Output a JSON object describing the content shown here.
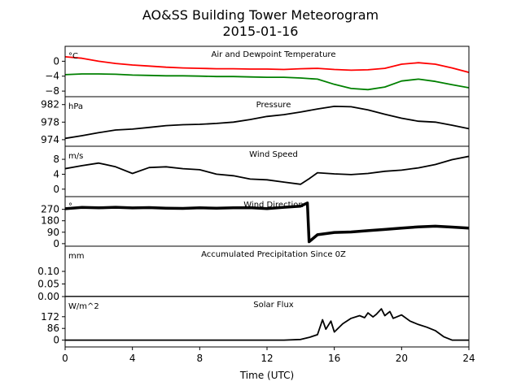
{
  "title": "AO&SS Building Tower Meteorogram",
  "subtitle": "2015-01-16",
  "xlabel": "Time (UTC)",
  "chart_data": {
    "type": "line",
    "title": "AO&SS Building Tower Meteorogram",
    "subtitle": "2015-01-16",
    "xlabel": "Time (UTC)",
    "xlim": [
      0,
      24
    ],
    "xticks": [
      "0",
      "4",
      "8",
      "12",
      "16",
      "20",
      "24"
    ],
    "panels": [
      {
        "id": "temperature",
        "title": "Air and Dewpoint Temperature",
        "unit": "°C",
        "ylim": [
          -9.5,
          4
        ],
        "yticks": [
          "0",
          "−4",
          "−8"
        ],
        "series": [
          {
            "color": "#ff0000",
            "x": [
              0,
              1,
              2,
              3,
              4,
              5,
              6,
              7,
              8,
              9,
              10,
              11,
              12,
              13,
              14,
              15,
              16,
              17,
              18,
              19,
              20,
              21,
              22,
              23,
              24
            ],
            "y": [
              1.2,
              0.8,
              0.0,
              -0.6,
              -1.0,
              -1.3,
              -1.6,
              -1.8,
              -1.9,
              -2.0,
              -2.0,
              -2.1,
              -2.1,
              -2.2,
              -2.0,
              -1.9,
              -2.2,
              -2.4,
              -2.3,
              -1.9,
              -0.8,
              -0.4,
              -0.8,
              -1.8,
              -3.0
            ]
          },
          {
            "color": "#008000",
            "x": [
              0,
              1,
              2,
              3,
              4,
              5,
              6,
              7,
              8,
              9,
              10,
              11,
              12,
              13,
              14,
              15,
              16,
              17,
              18,
              19,
              20,
              21,
              22,
              23,
              24
            ],
            "y": [
              -3.6,
              -3.4,
              -3.4,
              -3.5,
              -3.7,
              -3.8,
              -3.9,
              -3.9,
              -4.0,
              -4.1,
              -4.1,
              -4.2,
              -4.3,
              -4.3,
              -4.5,
              -4.8,
              -6.2,
              -7.3,
              -7.6,
              -6.9,
              -5.3,
              -4.8,
              -5.4,
              -6.3,
              -7.1
            ]
          }
        ]
      },
      {
        "id": "pressure",
        "title": "Pressure",
        "unit": "hPa",
        "ylim": [
          972.5,
          983.8
        ],
        "yticks": [
          "982",
          "978",
          "974"
        ],
        "series": [
          {
            "color": "#000000",
            "x": [
              0,
              1,
              2,
              3,
              4,
              5,
              6,
              7,
              8,
              9,
              10,
              11,
              12,
              13,
              14,
              15,
              16,
              17,
              18,
              19,
              20,
              21,
              22,
              23,
              24
            ],
            "y": [
              974.3,
              974.9,
              975.6,
              976.2,
              976.4,
              976.8,
              977.2,
              977.4,
              977.5,
              977.7,
              978.0,
              978.6,
              979.3,
              979.7,
              980.3,
              981.0,
              981.6,
              981.5,
              980.8,
              979.8,
              978.9,
              978.2,
              978.0,
              977.3,
              976.5
            ]
          }
        ]
      },
      {
        "id": "wind-speed",
        "title": "Wind Speed",
        "unit": "m/s",
        "ylim": [
          -2,
          11.5
        ],
        "yticks": [
          "8",
          "4",
          "0"
        ],
        "series": [
          {
            "color": "#000000",
            "x": [
              0,
              1,
              2,
              3,
              4,
              5,
              6,
              7,
              8,
              9,
              10,
              11,
              12,
              13,
              14,
              14.5,
              15,
              16,
              17,
              18,
              19,
              20,
              21,
              22,
              23,
              24
            ],
            "y": [
              5.5,
              6.3,
              7.0,
              6.0,
              4.2,
              5.8,
              6.0,
              5.5,
              5.2,
              4.0,
              3.6,
              2.7,
              2.5,
              1.9,
              1.3,
              2.8,
              4.4,
              4.1,
              3.9,
              4.2,
              4.8,
              5.1,
              5.7,
              6.6,
              7.9,
              8.8
            ]
          }
        ]
      },
      {
        "id": "wind-direction",
        "title": "Wind Direction",
        "unit": "°",
        "ylim": [
          -20,
          370
        ],
        "yticks": [
          "270",
          "180",
          "90",
          "0"
        ],
        "series": [
          {
            "color": "#000000",
            "style": "points",
            "x": [
              0,
              1,
              2,
              3,
              4,
              5,
              6,
              7,
              8,
              9,
              10,
              11,
              12,
              13,
              14,
              14.4,
              14.5,
              15,
              16,
              17,
              18,
              19,
              20,
              21,
              22,
              23,
              24
            ],
            "y": [
              275,
              285,
              282,
              286,
              281,
              284,
              279,
              277,
              282,
              279,
              282,
              283,
              276,
              286,
              295,
              320,
              15,
              70,
              88,
              92,
              102,
              112,
              122,
              132,
              137,
              130,
              122
            ]
          }
        ]
      },
      {
        "id": "precipitation",
        "title": "Accumulated Precipitation Since 0Z",
        "unit": "mm",
        "ylim": [
          0,
          0.2
        ],
        "yticks": [
          "0.10",
          "0.05",
          "0.00"
        ],
        "series": [
          {
            "color": "#000000",
            "x": [
              0,
              24
            ],
            "y": [
              0,
              0
            ]
          }
        ]
      },
      {
        "id": "solar-flux",
        "title": "Solar Flux",
        "unit": "W/m^2",
        "ylim": [
          -50,
          320
        ],
        "yticks": [
          "172",
          "86",
          "0"
        ],
        "series": [
          {
            "color": "#000000",
            "x": [
              0,
              13,
              14,
              14.5,
              15,
              15.3,
              15.5,
              15.8,
              16,
              16.5,
              17,
              17.5,
              17.8,
              18,
              18.3,
              18.5,
              18.8,
              19,
              19.3,
              19.5,
              20,
              20.5,
              21,
              21.5,
              22,
              22.5,
              23,
              24
            ],
            "y": [
              0,
              0,
              5,
              20,
              40,
              150,
              80,
              140,
              60,
              120,
              160,
              180,
              165,
              200,
              170,
              190,
              230,
              180,
              210,
              160,
              185,
              140,
              115,
              95,
              70,
              25,
              0,
              0
            ]
          }
        ]
      }
    ]
  }
}
